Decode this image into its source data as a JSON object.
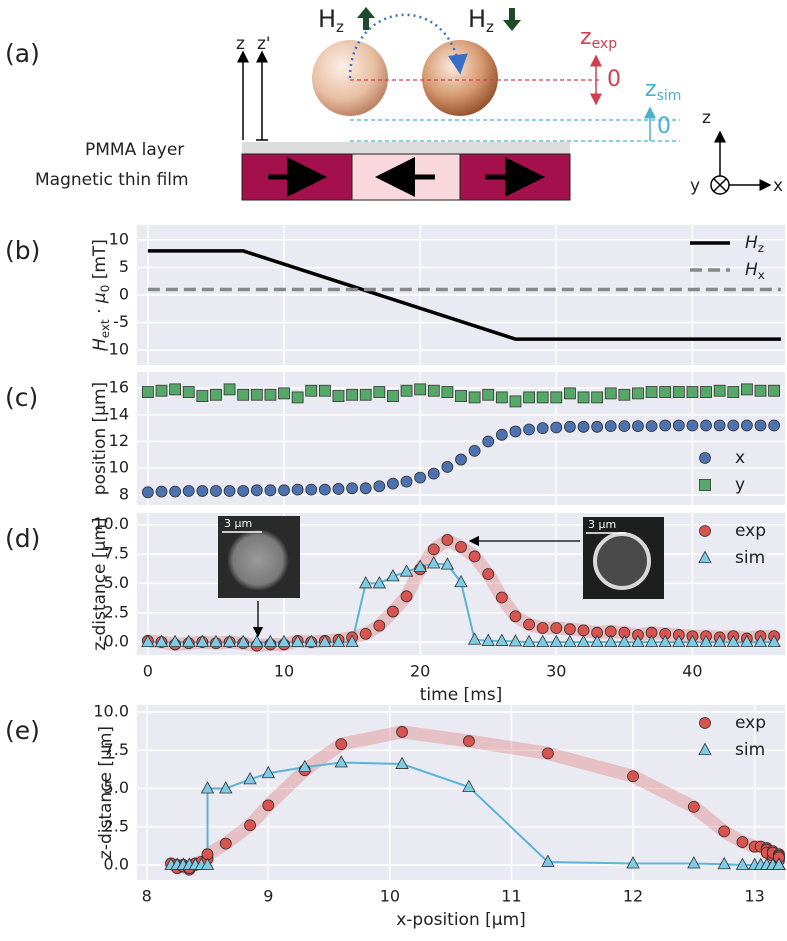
{
  "diagram": {
    "label": "(a)",
    "hz_up": {
      "main": "H",
      "sub": "z"
    },
    "hz_down": {
      "main": "H",
      "sub": "z"
    },
    "z_axis": "z",
    "z_prime": "z'",
    "z_exp": {
      "main": "z",
      "sub": "exp"
    },
    "exp_zero": "0",
    "z_sim": {
      "main": "z",
      "sub": "sim"
    },
    "sim_zero": "0",
    "pmma": "PMMA layer",
    "film": "Magnetic thin film",
    "axes": {
      "z": "z",
      "y": "y",
      "x": "x"
    }
  },
  "chart_data": [
    {
      "type": "line",
      "label": "(b)",
      "ylabel": [
        {
          "text": "H",
          "style": "italic"
        },
        {
          "text": "ext",
          "style": "sub"
        },
        {
          "text": " · ",
          "style": "normal"
        },
        {
          "text": "μ",
          "style": "italic"
        },
        {
          "text": "0",
          "style": "sub"
        },
        {
          "text": " [mT]",
          "style": "normal"
        }
      ],
      "xlim": [
        -0.8,
        46.8
      ],
      "ylim": [
        -12.7,
        12.7
      ],
      "xticks": [
        0,
        10,
        20,
        30,
        40
      ],
      "show_xtick_labels": false,
      "yticks": [
        -10,
        -5,
        0,
        5,
        10
      ],
      "grid": true,
      "legend": "upper right",
      "series": [
        {
          "name": [
            {
              "text": "H",
              "style": "italic"
            },
            {
              "text": "z",
              "style": "sub"
            }
          ],
          "color": "#000000",
          "linestyle": "solid",
          "x": [
            0,
            7,
            27,
            46.5
          ],
          "values": [
            8,
            8,
            -8,
            -8
          ]
        },
        {
          "name": [
            {
              "text": "H",
              "style": "italic"
            },
            {
              "text": "x",
              "style": "sub"
            }
          ],
          "color": "#888888",
          "linestyle": "dashed",
          "x": [
            0,
            46.5
          ],
          "values": [
            1,
            1
          ]
        }
      ]
    },
    {
      "type": "scatter",
      "label": "(c)",
      "ylabel": "position [μm]",
      "xlim": [
        -0.8,
        46.8
      ],
      "ylim": [
        7.25,
        17.2
      ],
      "xticks": [
        0,
        10,
        20,
        30,
        40
      ],
      "show_xtick_labels": false,
      "yticks": [
        8,
        10,
        12,
        14,
        16
      ],
      "grid": true,
      "legend": "lower right",
      "x": [
        0,
        1,
        2,
        3,
        4,
        5,
        6,
        7,
        8,
        9,
        10,
        11,
        12,
        13,
        14,
        15,
        16,
        17,
        18,
        19,
        20,
        21,
        22,
        23,
        24,
        25,
        26,
        27,
        28,
        29,
        30,
        31,
        32,
        33,
        34,
        35,
        36,
        37,
        38,
        39,
        40,
        41,
        42,
        43,
        44,
        45,
        46
      ],
      "series": [
        {
          "name": "x",
          "color": "#4c72b0",
          "marker": "circle",
          "values": [
            8.2,
            8.25,
            8.25,
            8.3,
            8.3,
            8.3,
            8.3,
            8.3,
            8.35,
            8.35,
            8.35,
            8.4,
            8.4,
            8.4,
            8.45,
            8.5,
            8.5,
            8.65,
            8.85,
            9.0,
            9.3,
            9.6,
            10.1,
            10.65,
            11.3,
            12.0,
            12.5,
            12.75,
            12.9,
            13.0,
            13.05,
            13.1,
            13.1,
            13.1,
            13.15,
            13.15,
            13.15,
            13.15,
            13.2,
            13.2,
            13.2,
            13.2,
            13.2,
            13.2,
            13.2,
            13.2,
            13.2
          ]
        },
        {
          "name": "y",
          "color": "#55a868",
          "marker": "square",
          "values": [
            15.7,
            15.8,
            15.9,
            15.7,
            15.4,
            15.5,
            15.9,
            15.5,
            15.5,
            15.5,
            15.6,
            15.3,
            15.8,
            15.8,
            15.4,
            15.5,
            15.5,
            15.7,
            15.4,
            15.8,
            15.9,
            15.8,
            15.7,
            15.4,
            15.3,
            15.5,
            15.3,
            15.0,
            15.3,
            15.3,
            15.3,
            15.6,
            15.3,
            15.3,
            15.6,
            15.5,
            15.6,
            15.7,
            15.7,
            15.7,
            15.7,
            15.7,
            15.8,
            15.7,
            15.9,
            15.8,
            15.8
          ]
        }
      ]
    },
    {
      "type": "scatter",
      "label": "(d)",
      "ylabel": "z-distance [μm]",
      "xlabel": "time [ms]",
      "annotations": [
        "3 μm",
        "3 μm"
      ],
      "xlim": [
        -0.8,
        46.8
      ],
      "ylim": [
        -1.1,
        11.0
      ],
      "xticks": [
        0,
        10,
        20,
        30,
        40
      ],
      "show_xtick_labels": true,
      "yticks": [
        {
          "value": 0,
          "label": "0.0"
        },
        {
          "value": 2.5,
          "label": "2.5"
        },
        {
          "value": 5,
          "label": "5.0"
        },
        {
          "value": 7.5,
          "label": "7.5"
        },
        {
          "value": 10,
          "label": "10.0"
        }
      ],
      "grid": true,
      "legend": "upper right",
      "x": [
        0,
        1,
        2,
        3,
        4,
        5,
        6,
        7,
        8,
        9,
        10,
        11,
        12,
        13,
        14,
        15,
        16,
        17,
        18,
        19,
        20,
        21,
        22,
        23,
        24,
        25,
        26,
        27,
        28,
        29,
        30,
        31,
        32,
        33,
        34,
        35,
        36,
        37,
        38,
        39,
        40,
        41,
        42,
        43,
        44,
        45,
        46
      ],
      "series": [
        {
          "name": "exp",
          "color": "#d9534f",
          "marker": "circle",
          "band": true,
          "values": [
            0.1,
            0.0,
            -0.2,
            -0.1,
            0.0,
            -0.1,
            0.0,
            -0.1,
            -0.3,
            -0.2,
            -0.2,
            0.1,
            0.0,
            0.1,
            0.2,
            0.4,
            0.7,
            1.4,
            2.6,
            3.9,
            6.2,
            7.9,
            8.7,
            8.1,
            7.3,
            5.8,
            3.8,
            2.2,
            1.5,
            1.2,
            1.2,
            1.1,
            1.0,
            0.8,
            0.9,
            0.8,
            0.6,
            0.8,
            0.7,
            0.6,
            0.5,
            0.5,
            0.4,
            0.5,
            0.3,
            0.5,
            0.5
          ]
        },
        {
          "name": "sim",
          "color": "#7ecbe6",
          "marker": "triangle",
          "line": "#5ab4d6",
          "values": [
            0,
            0,
            0,
            0,
            0,
            0,
            0,
            0,
            0,
            0,
            0,
            0,
            0,
            0,
            0,
            0,
            5.0,
            5.0,
            5.6,
            6.0,
            6.4,
            6.7,
            6.6,
            5.1,
            0.2,
            0.1,
            0.1,
            0.05,
            0,
            0,
            0,
            0,
            0,
            0,
            0,
            0,
            0,
            0,
            0,
            0,
            0,
            0,
            0,
            0,
            0,
            0,
            0
          ]
        }
      ]
    },
    {
      "type": "scatter",
      "label": "(e)",
      "ylabel": "z-distance [μm]",
      "xlabel": "x-position [μm]",
      "xlim": [
        7.92,
        13.25
      ],
      "ylim": [
        -0.98,
        10.46
      ],
      "xticks": [
        8,
        9,
        10,
        11,
        12,
        13
      ],
      "show_xtick_labels": true,
      "yticks": [
        {
          "value": 0,
          "label": "0.0"
        },
        {
          "value": 2.5,
          "label": "2.5"
        },
        {
          "value": 5,
          "label": "5.0"
        },
        {
          "value": 7.5,
          "label": "7.5"
        },
        {
          "value": 10,
          "label": "10.0"
        }
      ],
      "grid": true,
      "legend": "upper right",
      "x": [
        8.2,
        8.25,
        8.25,
        8.3,
        8.3,
        8.3,
        8.3,
        8.3,
        8.35,
        8.35,
        8.35,
        8.4,
        8.4,
        8.4,
        8.45,
        8.5,
        8.5,
        8.65,
        8.85,
        9.0,
        9.3,
        9.6,
        10.1,
        10.65,
        11.3,
        12.0,
        12.5,
        12.75,
        12.9,
        13.0,
        13.05,
        13.1,
        13.1,
        13.1,
        13.15,
        13.15,
        13.15,
        13.15,
        13.2,
        13.2,
        13.2,
        13.2,
        13.2,
        13.2,
        13.2,
        13.2,
        13.2
      ],
      "series": [
        {
          "name": "exp",
          "color": "#d9534f",
          "marker": "circle",
          "band": true,
          "values": [
            0.1,
            0.0,
            -0.2,
            -0.1,
            0.0,
            -0.1,
            0.0,
            -0.1,
            -0.3,
            -0.2,
            -0.2,
            0.1,
            0.0,
            0.1,
            0.2,
            0.4,
            0.7,
            1.4,
            2.6,
            3.9,
            6.2,
            7.9,
            8.7,
            8.1,
            7.3,
            5.8,
            3.8,
            2.2,
            1.5,
            1.2,
            1.2,
            1.1,
            1.0,
            0.8,
            0.9,
            0.8,
            0.6,
            0.8,
            0.7,
            0.6,
            0.5,
            0.5,
            0.4,
            0.5,
            0.3,
            0.5,
            0.5
          ]
        },
        {
          "name": "sim",
          "color": "#7ecbe6",
          "marker": "triangle",
          "line": "#5ab4d6",
          "values": [
            0,
            0,
            0,
            0,
            0,
            0,
            0,
            0,
            0,
            0,
            0,
            0,
            0,
            0,
            0,
            0,
            5.0,
            5.0,
            5.6,
            6.0,
            6.4,
            6.7,
            6.6,
            5.1,
            0.2,
            0.1,
            0.1,
            0.05,
            0,
            0,
            0,
            0,
            0,
            0,
            0,
            0,
            0,
            0,
            0,
            0,
            0,
            0,
            0,
            0,
            0,
            0,
            0
          ]
        }
      ]
    }
  ]
}
